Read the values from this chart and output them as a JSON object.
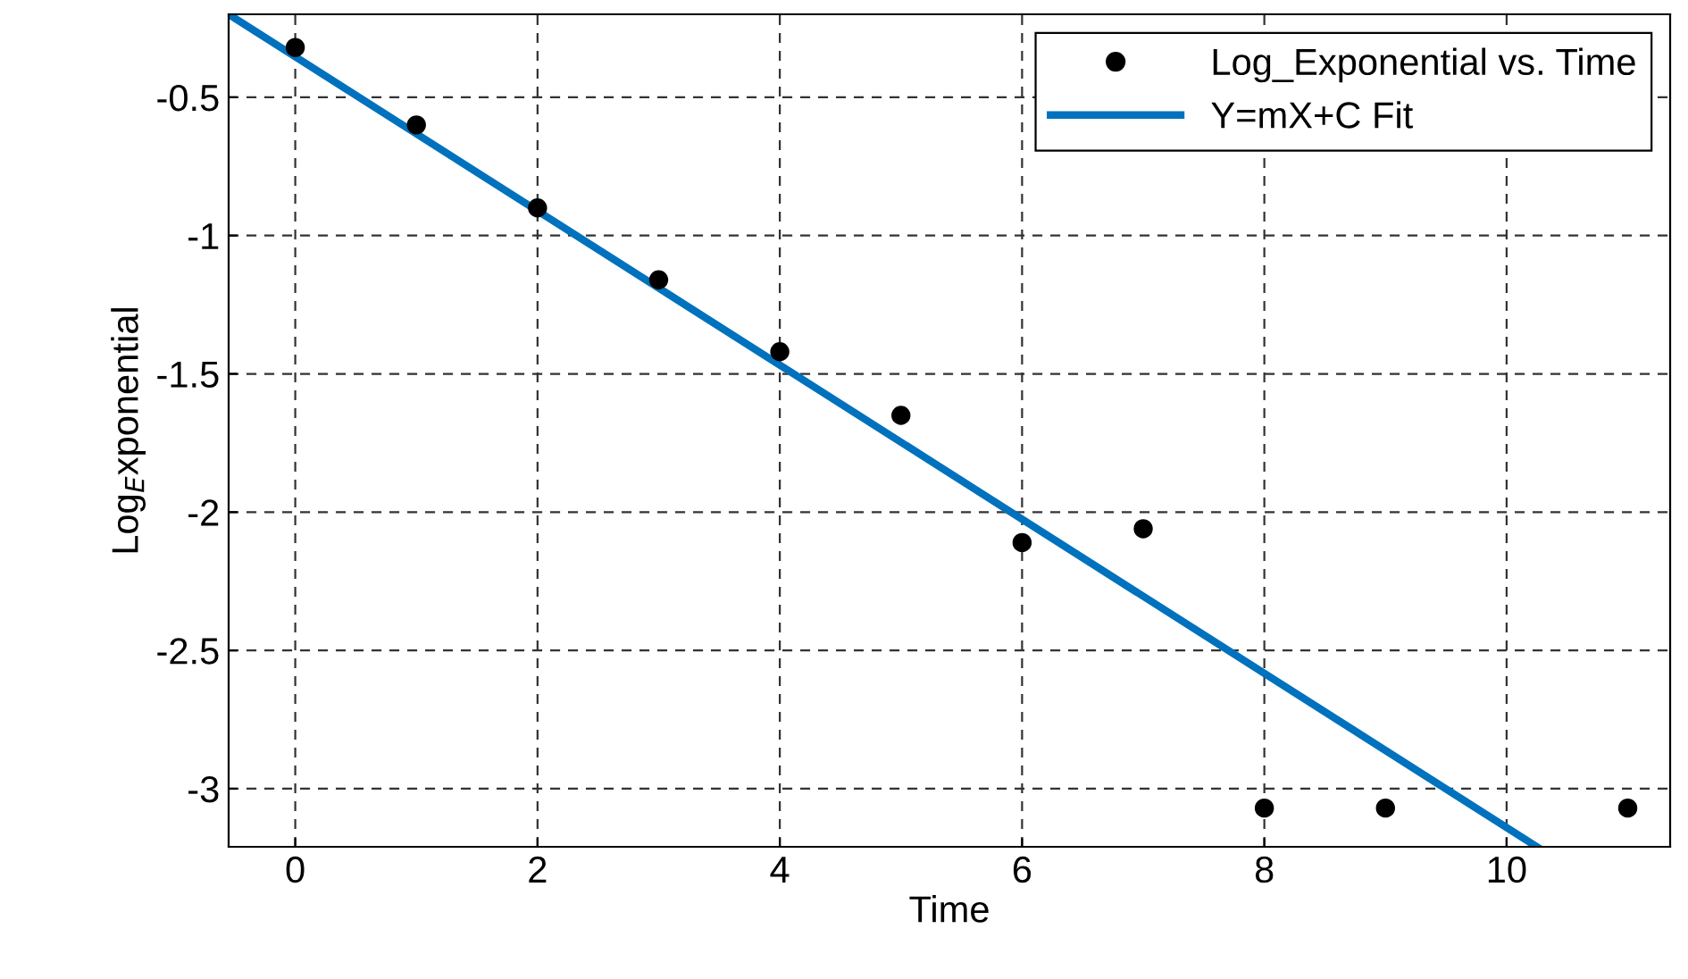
{
  "chart_data": {
    "type": "scatter",
    "xlabel": "Time",
    "ylabel": "Log$_{E}$xponential",
    "xlim": [
      -0.55,
      11.35
    ],
    "ylim": [
      -3.21,
      -0.2
    ],
    "xticks": [
      0,
      2,
      4,
      6,
      8,
      10
    ],
    "yticks": [
      {
        "value": -0.5,
        "label": "-0.5"
      },
      {
        "value": -1,
        "label": "-1"
      },
      {
        "value": -1.5,
        "label": "-1.5"
      },
      {
        "value": -2,
        "label": "-2"
      },
      {
        "value": -2.5,
        "label": "-2.5"
      },
      {
        "value": -3,
        "label": "-3"
      }
    ],
    "grid": true,
    "legend": "top right",
    "series": [
      {
        "name": "Log_Exponential vs. Time",
        "marker": "circle",
        "color": "#000000",
        "x": [
          0,
          1,
          2,
          3,
          4,
          5,
          6,
          7,
          8,
          9,
          11
        ],
        "values": [
          -0.32,
          -0.6,
          -0.9,
          -1.16,
          -1.42,
          -1.65,
          -2.11,
          -2.06,
          -3.07,
          -3.07,
          -3.07
        ]
      },
      {
        "name": "Y=mX+C Fit",
        "type": "line",
        "line_style": "solid",
        "color": "#0072bd",
        "x": [
          -0.55,
          10.25
        ],
        "values": [
          -0.2,
          -3.21
        ]
      }
    ]
  }
}
